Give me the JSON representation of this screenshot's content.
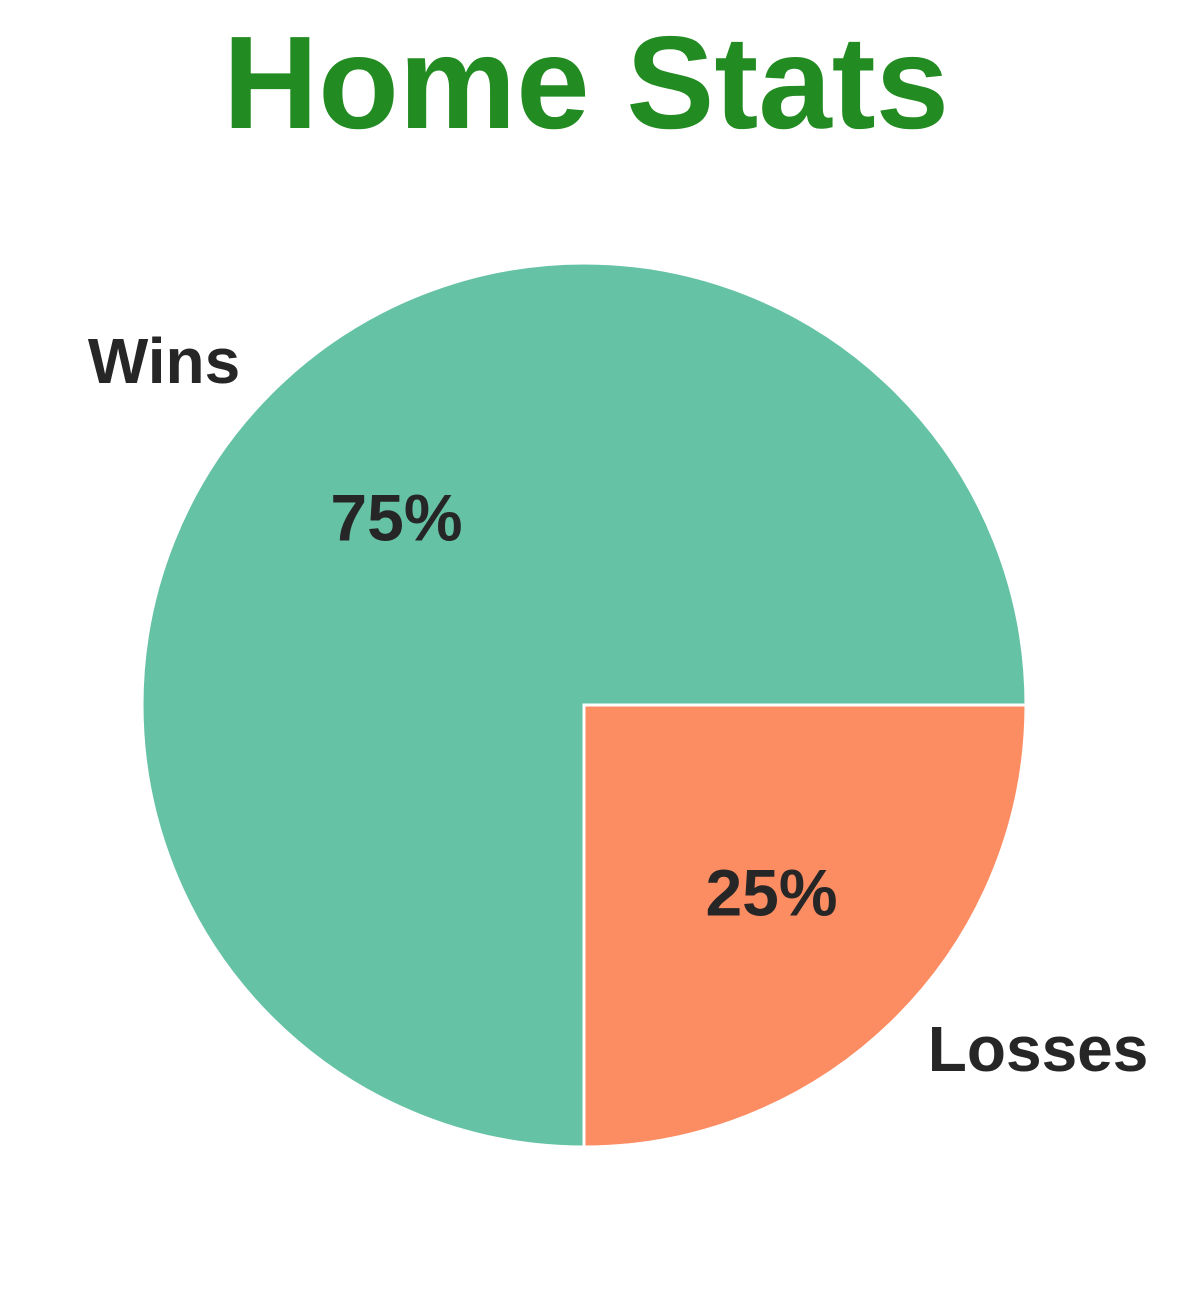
{
  "chart_data": {
    "type": "pie",
    "title": "Home Stats",
    "title_color": "#228B22",
    "categories": [
      "Wins",
      "Losses"
    ],
    "values": [
      75,
      25
    ],
    "percent_labels": [
      "75%",
      "25%"
    ],
    "colors": [
      "#66c2a5",
      "#fc8d62"
    ],
    "slice_edge_color": "#ffffff",
    "legend": "none"
  }
}
